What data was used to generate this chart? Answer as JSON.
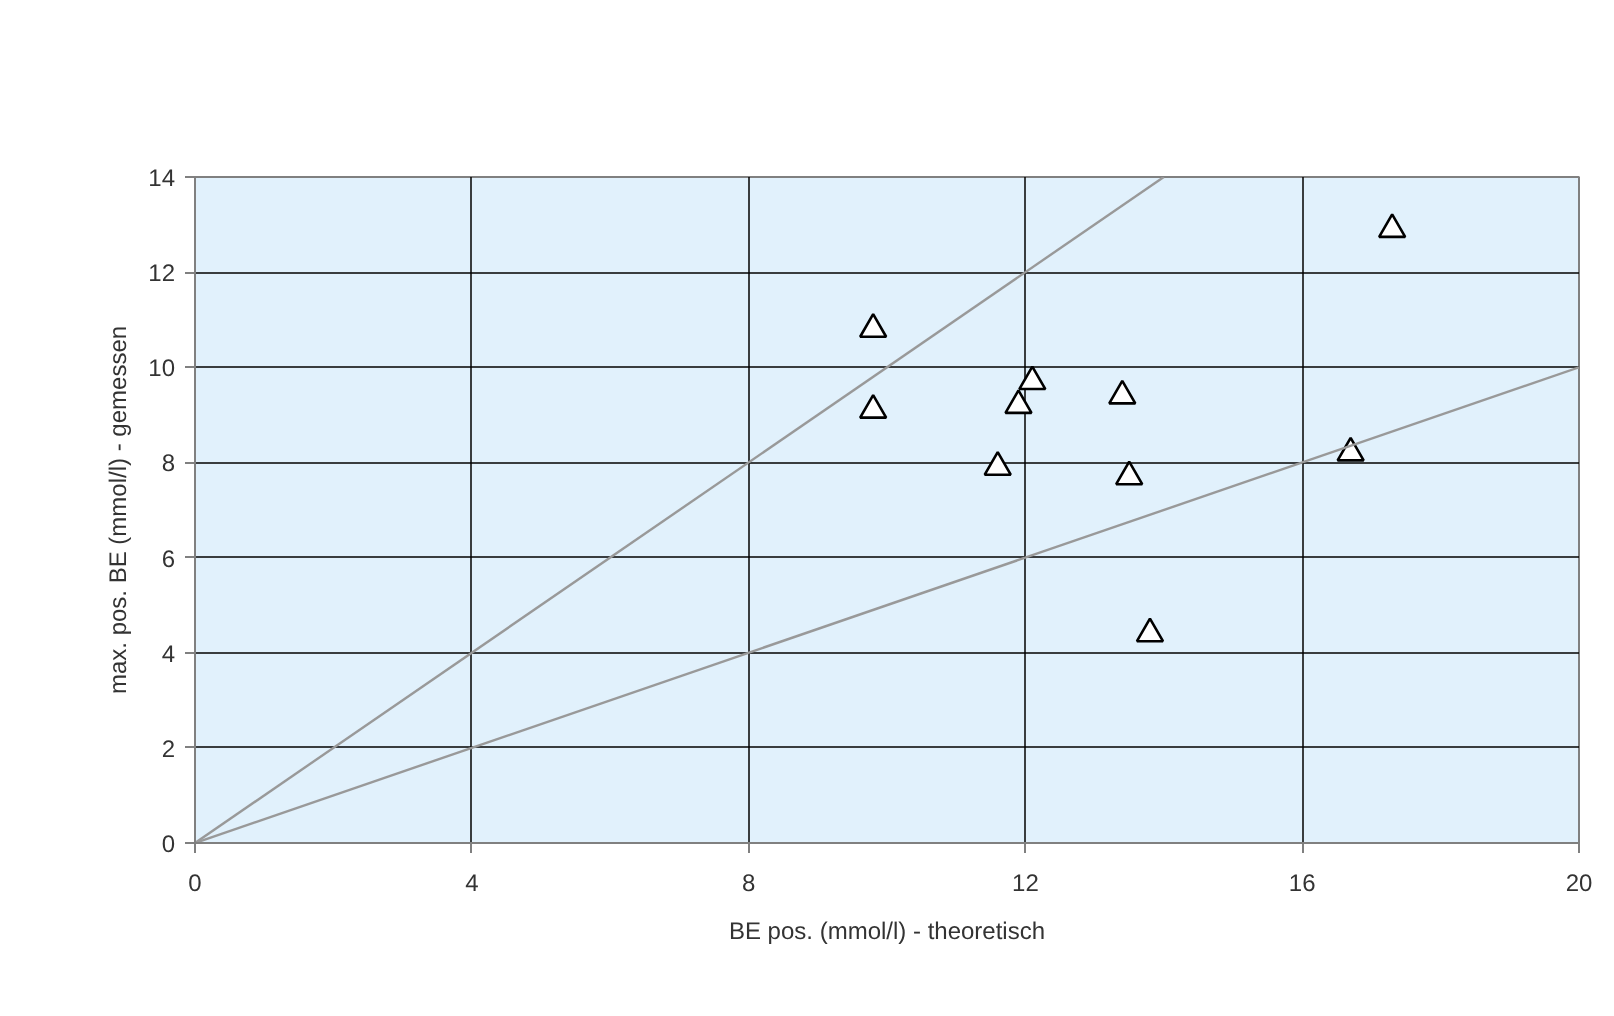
{
  "chart_data": {
    "type": "scatter",
    "xlabel": "BE pos. (mmol/l) - theoretisch",
    "ylabel": "max. pos. BE (mmol/l) - gemessen",
    "xlim": [
      0,
      20
    ],
    "ylim": [
      0,
      14
    ],
    "xticks": [
      0,
      4,
      8,
      12,
      16,
      20
    ],
    "yticks": [
      0,
      2,
      4,
      6,
      8,
      10,
      12,
      14
    ],
    "grid": true,
    "series": [
      {
        "marker": "triangle",
        "color": "#000000",
        "x": [
          17.3,
          9.8,
          9.8,
          12.1,
          11.9,
          13.4,
          11.6,
          13.5,
          16.7,
          13.8
        ],
        "values": [
          12.9,
          10.8,
          9.1,
          9.7,
          9.2,
          9.4,
          7.9,
          7.7,
          8.2,
          4.4
        ]
      },
      {
        "type": "line",
        "color": "#999999",
        "marker": "none",
        "x": [
          0,
          14
        ],
        "values": [
          0,
          14
        ]
      },
      {
        "type": "line",
        "color": "#999999",
        "marker": "none",
        "x": [
          0,
          20
        ],
        "values": [
          0,
          10
        ]
      }
    ]
  }
}
